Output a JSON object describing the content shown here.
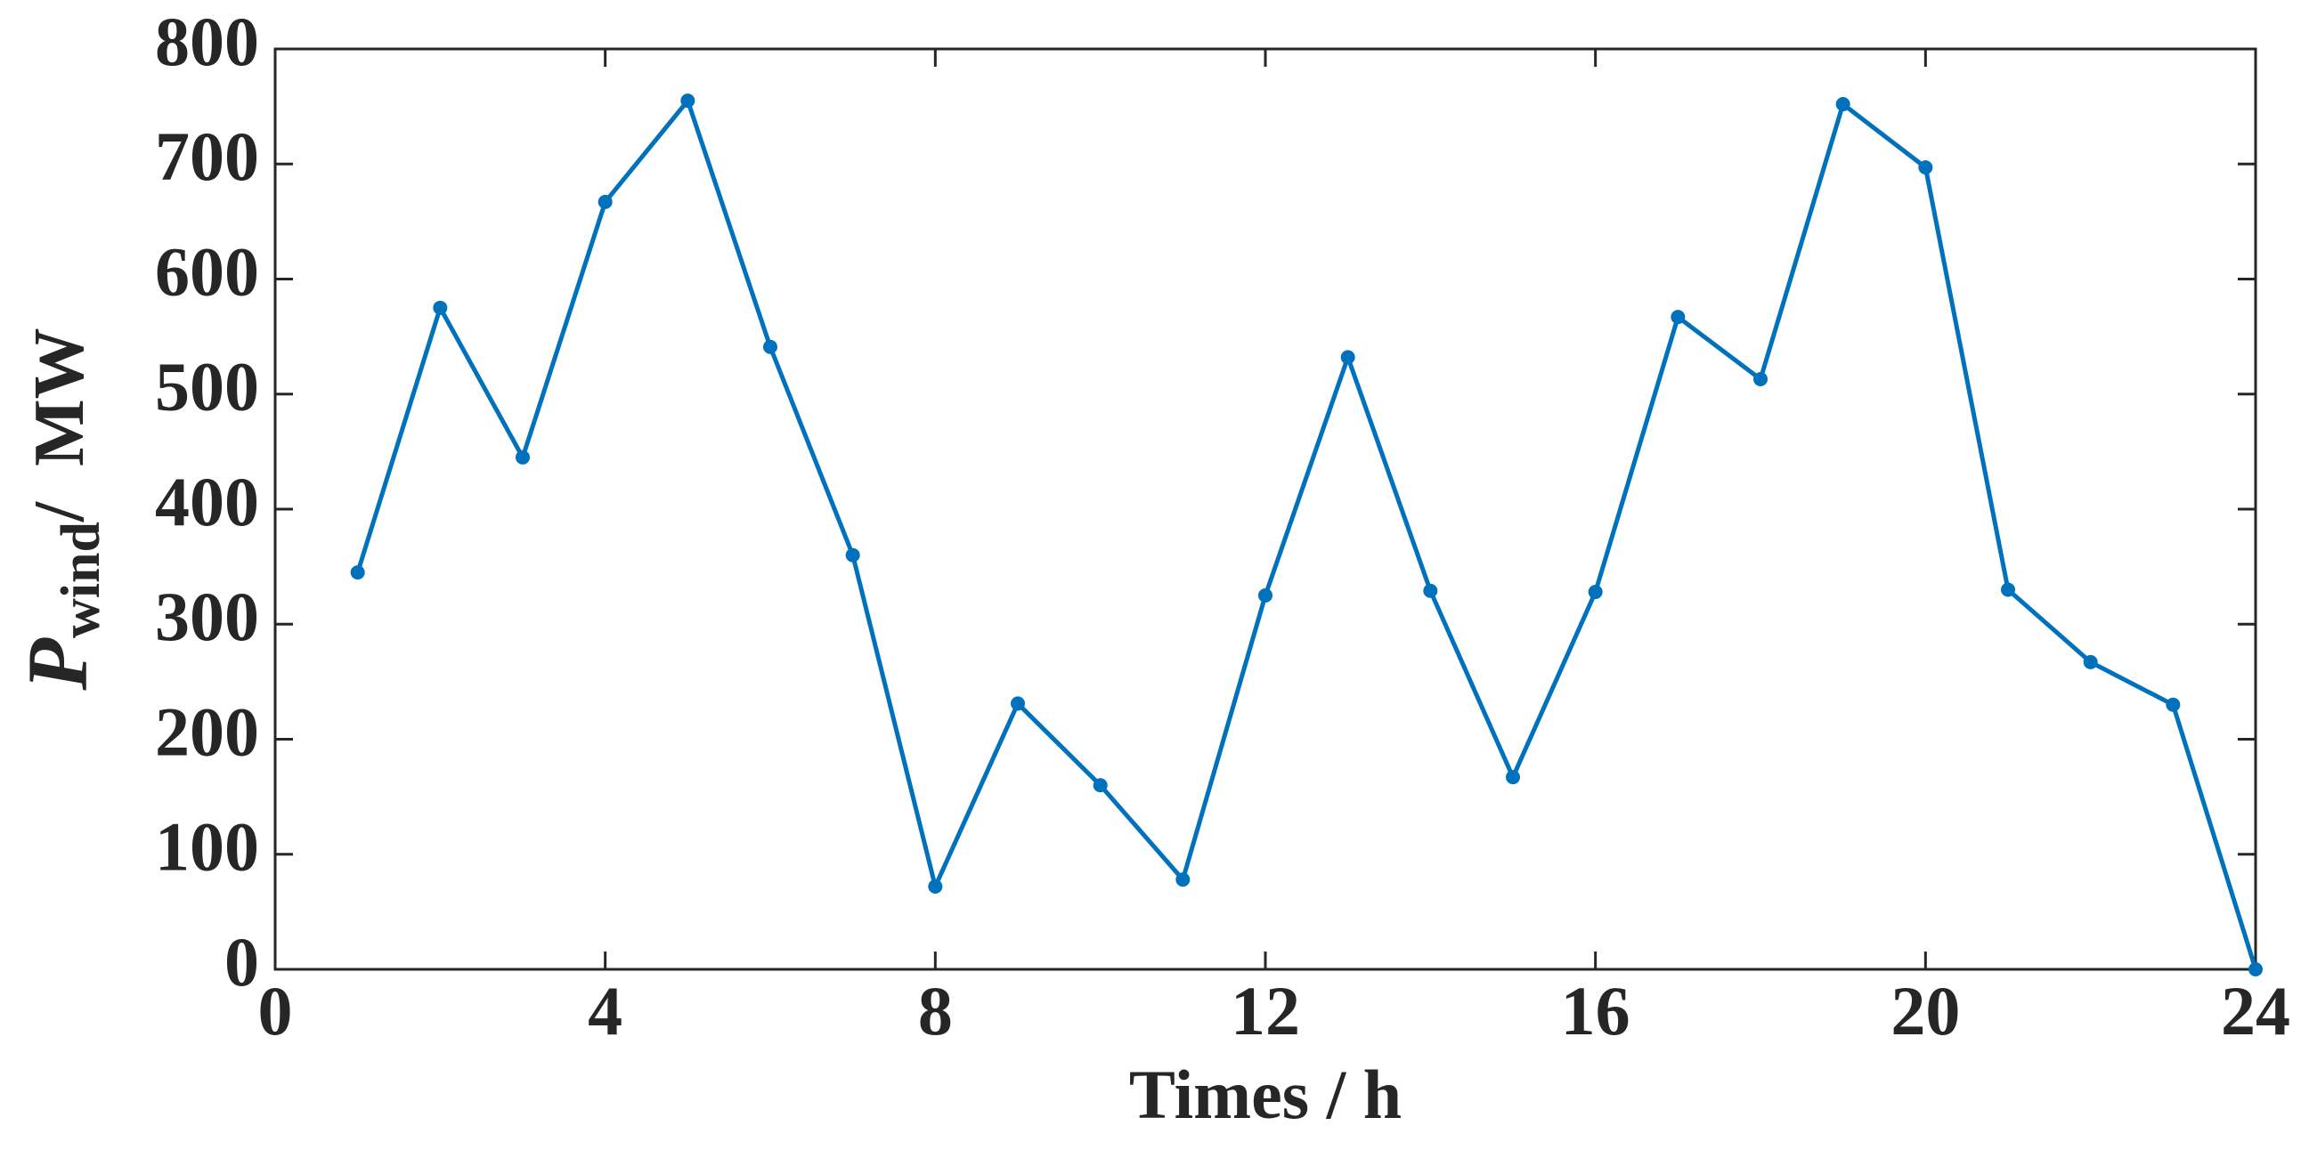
{
  "chart_data": {
    "type": "line",
    "x": [
      1,
      2,
      3,
      4,
      5,
      6,
      7,
      8,
      9,
      10,
      11,
      12,
      13,
      14,
      15,
      16,
      17,
      18,
      19,
      20,
      21,
      22,
      23,
      24
    ],
    "series": [
      {
        "color": "#0072bd",
        "values": [
          345,
          575,
          445,
          667,
          755,
          541,
          360,
          72,
          231,
          160,
          78,
          325,
          532,
          329,
          167,
          328,
          567,
          513,
          752,
          697,
          330,
          267,
          230,
          0
        ]
      }
    ],
    "xlim": [
      0,
      24
    ],
    "xticks": [
      0,
      4,
      8,
      12,
      16,
      20,
      24
    ],
    "ylim": [
      0,
      800
    ],
    "yticks": [
      0,
      100,
      200,
      300,
      400,
      500,
      600,
      700,
      800
    ],
    "xlabel": "Times / h",
    "ylabel": {
      "symbol": "P",
      "subscript": "wind",
      "unit": "/  MW"
    },
    "markers": true,
    "grid": false
  }
}
